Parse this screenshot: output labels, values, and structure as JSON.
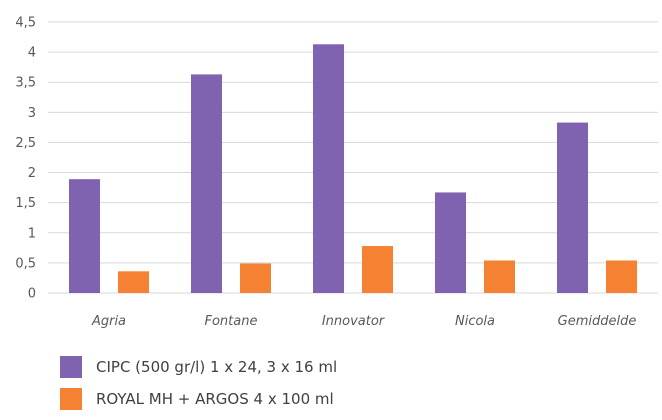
{
  "chart_data": {
    "type": "bar",
    "categories": [
      "Agria",
      "Fontane",
      "Innovator",
      "Nicola",
      "Gemiddelde"
    ],
    "series": [
      {
        "name": "CIPC (500 gr/l) 1 x 24, 3 x 16 ml",
        "color": "#7f63b0",
        "values": [
          1.89,
          3.63,
          4.13,
          1.67,
          2.83
        ]
      },
      {
        "name": "ROYAL MH + ARGOS 4 x 100 ml",
        "color": "#f58232",
        "values": [
          0.36,
          0.49,
          0.78,
          0.54,
          0.54
        ]
      }
    ],
    "ylim": [
      0,
      4.5
    ],
    "yticks": [
      "0",
      "0,5",
      "1",
      "1,5",
      "2",
      "2,5",
      "3",
      "3,5",
      "4",
      "4,5"
    ],
    "grid": true,
    "legend": "bottom",
    "gridline_color": "#d9d9d9"
  }
}
